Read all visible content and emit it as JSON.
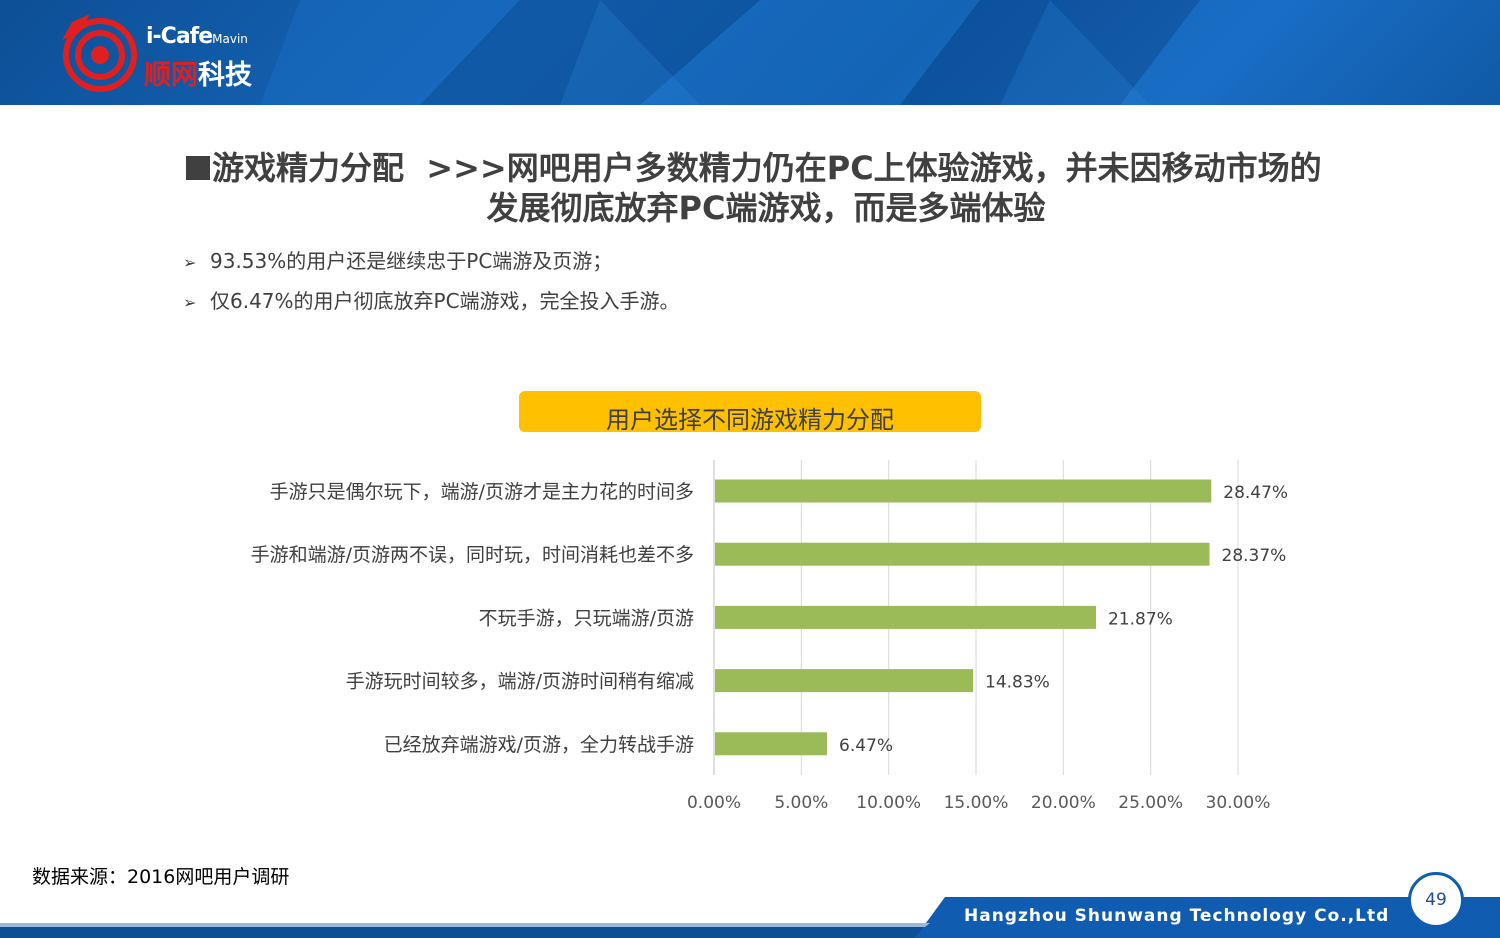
{
  "header": {
    "brand_latin": "i-Cafe",
    "brand_small": "Mavin",
    "brand_cn_red": "顺网",
    "brand_cn": "科技"
  },
  "title": {
    "section": "游戏精力分配",
    "line1": ">>>网吧用户多数精力仍在PC上体验游戏，并未因移动市场的",
    "line2": "发展彻底放弃PC端游戏，而是多端体验"
  },
  "bullets": [
    "93.53%的用户还是继续忠于PC端游及页游；",
    "仅6.47%的用户彻底放弃PC端游戏，完全投入手游。"
  ],
  "chart_data": {
    "type": "bar",
    "orientation": "horizontal",
    "title": "用户选择不同游戏精力分配",
    "categories": [
      "手游只是偶尔玩下，端游/页游才是主力花的时间多",
      "手游和端游/页游两不误，同时玩，时间消耗也差不多",
      "不玩手游，只玩端游/页游",
      "手游玩时间较多，端游/页游时间稍有缩减",
      "已经放弃端游戏/页游，全力转战手游"
    ],
    "values": [
      28.47,
      28.37,
      21.87,
      14.83,
      6.47
    ],
    "value_labels": [
      "28.47%",
      "28.37%",
      "21.87%",
      "14.83%",
      "6.47%"
    ],
    "xlim": [
      0,
      30
    ],
    "x_ticks": [
      "0.00%",
      "5.00%",
      "10.00%",
      "15.00%",
      "20.00%",
      "25.00%",
      "30.00%"
    ],
    "grid": true,
    "bar_color": "#9bbb59",
    "title_bg": "#ffc000"
  },
  "source": "数据来源：2016网吧用户调研",
  "footer": {
    "company": "Hangzhou Shunwang Technology Co.,Ltd",
    "page_number": "49"
  },
  "colors": {
    "header_blue": "#0f5cb0",
    "footer_blue": "#0d4f96"
  }
}
